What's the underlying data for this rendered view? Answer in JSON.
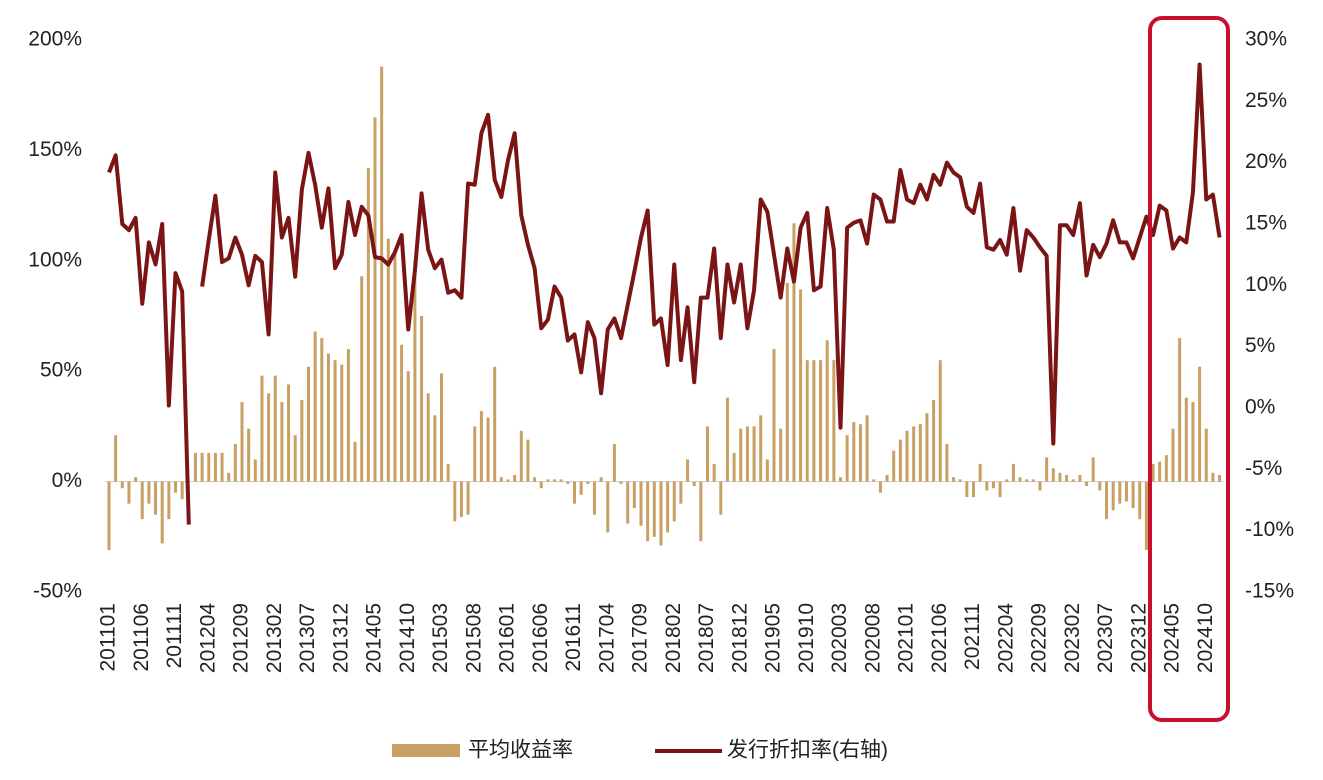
{
  "chart_data": {
    "type": "bar-line",
    "categories": [
      "201101",
      null,
      null,
      null,
      null,
      "201106",
      null,
      null,
      null,
      null,
      "201111",
      null,
      null,
      null,
      null,
      "201204",
      null,
      null,
      null,
      null,
      "201209",
      null,
      null,
      null,
      null,
      "201302",
      null,
      null,
      null,
      null,
      "201307",
      null,
      null,
      null,
      null,
      "201312",
      null,
      null,
      null,
      null,
      "201405",
      null,
      null,
      null,
      null,
      "201410",
      null,
      null,
      null,
      null,
      "201503",
      null,
      null,
      null,
      null,
      "201508",
      null,
      null,
      null,
      null,
      "201601",
      null,
      null,
      null,
      null,
      "201606",
      null,
      null,
      null,
      null,
      "201611",
      null,
      null,
      null,
      null,
      "201704",
      null,
      null,
      null,
      null,
      "201709",
      null,
      null,
      null,
      null,
      "201802",
      null,
      null,
      null,
      null,
      "201807",
      null,
      null,
      null,
      null,
      "201812",
      null,
      null,
      null,
      null,
      "201905",
      null,
      null,
      null,
      null,
      "201910",
      null,
      null,
      null,
      null,
      "202003",
      null,
      null,
      null,
      null,
      "202008",
      null,
      null,
      null,
      null,
      "202101",
      null,
      null,
      null,
      null,
      "202106",
      null,
      null,
      null,
      null,
      "202111",
      null,
      null,
      null,
      null,
      "202204",
      null,
      null,
      null,
      null,
      "202209",
      null,
      null,
      null,
      null,
      "202302",
      null,
      null,
      null,
      null,
      "202307",
      null,
      null,
      null,
      null,
      "202312",
      null,
      null,
      null,
      null,
      "202405",
      null,
      null,
      null,
      null,
      "202410",
      null,
      null
    ],
    "series": [
      {
        "name": "平均收益率",
        "type": "bar",
        "color": "#c9a063",
        "values": [
          -31,
          21,
          -3,
          -10,
          2,
          -17,
          -10,
          -15,
          -28,
          -17,
          -5,
          -8,
          0,
          13,
          13,
          13,
          13,
          13,
          4,
          17,
          36,
          24,
          10,
          48,
          40,
          48,
          36,
          44,
          21,
          37,
          52,
          68,
          65,
          58,
          55,
          53,
          60,
          18,
          93,
          142,
          165,
          188,
          110,
          105,
          62,
          50,
          100,
          75,
          40,
          30,
          49,
          8,
          -18,
          -16,
          -15,
          25,
          32,
          29,
          52,
          2,
          1,
          3,
          23,
          19,
          2,
          -3,
          1,
          1,
          1,
          -1,
          -10,
          -6,
          -1,
          -15,
          2,
          -23,
          17,
          -1,
          -19,
          -12,
          -20,
          -27,
          -25,
          -29,
          -23,
          -18,
          -10,
          10,
          -2,
          -27,
          25,
          8,
          -15,
          38,
          13,
          24,
          25,
          25,
          30,
          10,
          60,
          24,
          90,
          117,
          87,
          55,
          55,
          55,
          64,
          55,
          2,
          21,
          27,
          26,
          30,
          1,
          -5,
          3,
          14,
          19,
          23,
          25,
          26,
          31,
          37,
          55,
          17,
          2,
          1,
          -7,
          -7,
          8,
          -4,
          -3,
          -7,
          1,
          8,
          2,
          1,
          1,
          -4,
          11,
          6,
          4,
          3,
          1,
          3,
          -2,
          11,
          -4,
          -17,
          -13,
          -10,
          -9,
          -12,
          -17,
          -31,
          8,
          9,
          12,
          24,
          65,
          38,
          36,
          52,
          24,
          4,
          3
        ]
      },
      {
        "name": "发行折扣率(右轴)",
        "type": "line",
        "axis": "y2",
        "color": "#7b1515",
        "values": [
          19.2,
          20.6,
          15,
          14.5,
          15.5,
          8.5,
          13.5,
          11.7,
          15,
          0.2,
          11,
          9.5,
          -9.5,
          null,
          9.9,
          13.7,
          17.3,
          11.9,
          12.2,
          13.9,
          12.5,
          10,
          12.4,
          11.9,
          6,
          19.2,
          13.9,
          15.5,
          10.7,
          17.8,
          20.8,
          18.2,
          14.7,
          17.9,
          11.4,
          12.5,
          16.8,
          14.1,
          16.4,
          15.7,
          12.3,
          12.2,
          11.7,
          12.7,
          14.1,
          6.4,
          11.2,
          17.5,
          12.9,
          11.4,
          12.1,
          9.4,
          9.6,
          9,
          18.3,
          18.2,
          22.4,
          23.9,
          18.6,
          17.2,
          20.2,
          22.4,
          15.7,
          13.3,
          11.4,
          6.5,
          7.2,
          9.9,
          9,
          5.5,
          6,
          2.9,
          7,
          5.7,
          1.2,
          6.4,
          7.3,
          5.7,
          8.4,
          11.1,
          13.9,
          16.1,
          6.8,
          7.3,
          3.5,
          11.7,
          3.9,
          8.2,
          2.1,
          9,
          9,
          13,
          5.7,
          11.7,
          8.6,
          11.7,
          6.5,
          9.6,
          17,
          16,
          12.5,
          9,
          13,
          10.3,
          14.7,
          15.9,
          9.6,
          9.9,
          16.3,
          12.9,
          -1.6,
          14.7,
          15.1,
          15.3,
          13.4,
          17.4,
          17,
          15.2,
          15.2,
          19.4,
          17,
          16.7,
          18.2,
          17,
          19,
          18.2,
          20,
          19.2,
          18.8,
          16.4,
          15.9,
          18.3,
          13.1,
          12.9,
          13.7,
          12.5,
          16.3,
          11.2,
          14.5,
          13.9,
          13.1,
          12.4,
          -2.9,
          14.9,
          14.9,
          14.1,
          16.7,
          10.8,
          13.3,
          12.3,
          13.4,
          15.3,
          13.5,
          13.5,
          12.2,
          13.9,
          15.6,
          14.1,
          16.5,
          16.1,
          13,
          13.9,
          13.5,
          17.6,
          28,
          17,
          17.4,
          13.9
        ]
      }
    ],
    "ylim": [
      -50,
      200
    ],
    "yticks": [
      {
        "value": -50,
        "label": "-50%"
      },
      {
        "value": 0,
        "label": "0%"
      },
      {
        "value": 50,
        "label": "50%"
      },
      {
        "value": 100,
        "label": "100%"
      },
      {
        "value": 150,
        "label": "150%"
      },
      {
        "value": 200,
        "label": "200%"
      }
    ],
    "y2lim": [
      -15,
      30
    ],
    "y2ticks": [
      {
        "value": -15,
        "label": "-15%"
      },
      {
        "value": -10,
        "label": "-10%"
      },
      {
        "value": -5,
        "label": "-5%"
      },
      {
        "value": 0,
        "label": "0%"
      },
      {
        "value": 5,
        "label": "5%"
      },
      {
        "value": 10,
        "label": "10%"
      },
      {
        "value": 15,
        "label": "15%"
      },
      {
        "value": 20,
        "label": "20%"
      },
      {
        "value": 25,
        "label": "25%"
      },
      {
        "value": 30,
        "label": "30%"
      }
    ],
    "grid": false,
    "legend": "bottom"
  }
}
